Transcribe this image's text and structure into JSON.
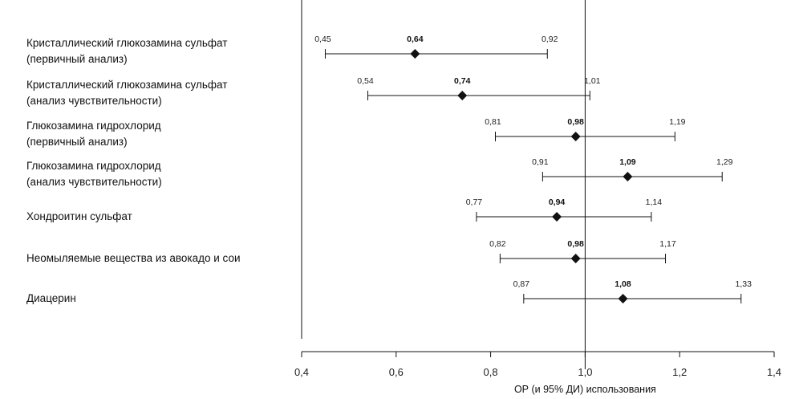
{
  "chart_data": {
    "type": "forest",
    "xlabel": "ОР (и 95% ДИ) использования",
    "xlim": [
      0.4,
      1.4
    ],
    "reference_line": 1.0,
    "x_ticks": [
      "0,4",
      "0,6",
      "0,8",
      "1,0",
      "1,2",
      "1,4"
    ],
    "x_tick_values": [
      0.4,
      0.6,
      0.8,
      1.0,
      1.2,
      1.4
    ],
    "rows": [
      {
        "label_lines": [
          "Кристаллический глюкозамина сульфат",
          "(первичный анализ)"
        ],
        "estimate": 0.64,
        "lower": 0.45,
        "upper": 0.92,
        "estimate_text": "0,64",
        "lower_text": "0,45",
        "upper_text": "0,92"
      },
      {
        "label_lines": [
          "Кристаллический глюкозамина сульфат",
          "(анализ чувствительности)"
        ],
        "estimate": 0.74,
        "lower": 0.54,
        "upper": 1.01,
        "estimate_text": "0,74",
        "lower_text": "0,54",
        "upper_text": "1,01"
      },
      {
        "label_lines": [
          "Глюкозамина гидрохлорид",
          "(первичный анализ)"
        ],
        "estimate": 0.98,
        "lower": 0.81,
        "upper": 1.19,
        "estimate_text": "0,98",
        "lower_text": "0,81",
        "upper_text": "1,19"
      },
      {
        "label_lines": [
          "Глюкозамина гидрохлорид",
          "(анализ чувствительности)"
        ],
        "estimate": 1.09,
        "lower": 0.91,
        "upper": 1.29,
        "estimate_text": "1,09",
        "lower_text": "0,91",
        "upper_text": "1,29"
      },
      {
        "label_lines": [
          "Хондроитин сульфат"
        ],
        "estimate": 0.94,
        "lower": 0.77,
        "upper": 1.14,
        "estimate_text": "0,94",
        "lower_text": "0,77",
        "upper_text": "1,14"
      },
      {
        "label_lines": [
          "Неомыляемые вещества из авокадо и сои"
        ],
        "estimate": 0.98,
        "lower": 0.82,
        "upper": 1.17,
        "estimate_text": "0,98",
        "lower_text": "0,82",
        "upper_text": "1,17"
      },
      {
        "label_lines": [
          "Диацерин"
        ],
        "estimate": 1.08,
        "lower": 0.87,
        "upper": 1.33,
        "estimate_text": "1,08",
        "lower_text": "0,87",
        "upper_text": "1,33"
      }
    ]
  }
}
